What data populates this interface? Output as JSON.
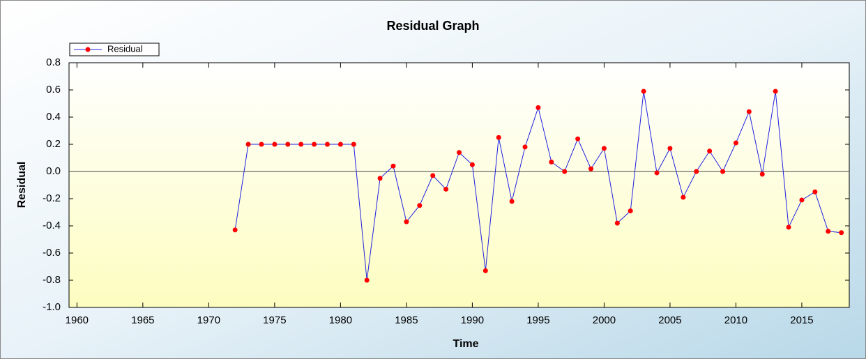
{
  "chart_data": {
    "type": "line",
    "title": "Residual Graph",
    "x_label": "Time",
    "y_label": "Residual",
    "x": [
      1972,
      1973,
      1974,
      1975,
      1976,
      1977,
      1978,
      1979,
      1980,
      1981,
      1982,
      1983,
      1984,
      1985,
      1986,
      1987,
      1988,
      1989,
      1990,
      1991,
      1992,
      1993,
      1994,
      1995,
      1996,
      1997,
      1998,
      1999,
      2000,
      2001,
      2002,
      2003,
      2004,
      2005,
      2006,
      2007,
      2008,
      2009,
      2010,
      2011,
      2012,
      2013,
      2014,
      2015,
      2016,
      2017,
      2018
    ],
    "series": [
      {
        "name": "Residual",
        "color": "#2020e0",
        "marker_color": "#ff0000",
        "values": [
          -0.43,
          0.2,
          0.2,
          0.2,
          0.2,
          0.2,
          0.2,
          0.2,
          0.2,
          0.2,
          -0.8,
          -0.05,
          0.04,
          -0.37,
          -0.25,
          -0.03,
          -0.13,
          0.14,
          0.05,
          -0.73,
          0.25,
          -0.22,
          0.18,
          0.47,
          0.07,
          0.0,
          0.24,
          0.02,
          0.17,
          -0.38,
          -0.29,
          0.59,
          -0.01,
          0.17,
          -0.19,
          0.0,
          0.15,
          0.0,
          0.21,
          0.44,
          -0.02,
          0.59,
          -0.41,
          -0.21,
          -0.15,
          -0.44,
          -0.45
        ]
      }
    ],
    "xlim": [
      1959.4,
      2018.6
    ],
    "xticks": [
      1960,
      1965,
      1970,
      1975,
      1980,
      1985,
      1990,
      1995,
      2000,
      2005,
      2010,
      2015
    ],
    "ylim": [
      -1.0,
      0.8
    ],
    "yticks": [
      0.8,
      0.6,
      0.4,
      0.2,
      {
        "value": 0,
        "label": "0.0"
      },
      -0.2,
      -0.4,
      -0.6,
      -0.8,
      {
        "value": -1,
        "label": "-1.0"
      }
    ],
    "legend": "top-left"
  }
}
